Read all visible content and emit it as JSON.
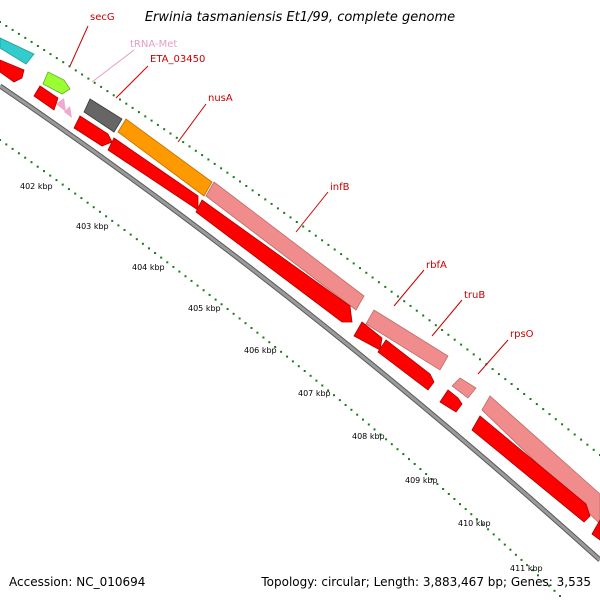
{
  "title": "Erwinia tasmaniensis Et1/99, complete genome",
  "footer": {
    "accession": "Accession: NC_010694",
    "topology": "Topology: circular; Length: 3,883,467 bp; Genes: 3,535"
  },
  "colors": {
    "backbone": "#8c8c8c",
    "cds": "#ff0000",
    "gene": "#f08c8c",
    "trna": "#f0a8d0",
    "tick": "#1a7a1a",
    "label_red": "#cc0000",
    "label_pink": "#e89ac6"
  },
  "scale": [
    {
      "text": "402 kbp"
    },
    {
      "text": "403 kbp"
    },
    {
      "text": "404 kbp"
    },
    {
      "text": "405 kbp"
    },
    {
      "text": "406 kbp"
    },
    {
      "text": "407 kbp"
    },
    {
      "text": "408 kbp"
    },
    {
      "text": "409 kbp"
    },
    {
      "text": "410 kbp"
    },
    {
      "text": "411 kbp"
    }
  ],
  "labels": [
    {
      "text": "secG",
      "color": "#cc0000"
    },
    {
      "text": "tRNA-Met",
      "color": "#e89ac6"
    },
    {
      "text": "ETA_03450",
      "color": "#cc0000"
    },
    {
      "text": "nusA",
      "color": "#cc0000"
    },
    {
      "text": "infB",
      "color": "#cc0000"
    },
    {
      "text": "rbfA",
      "color": "#cc0000"
    },
    {
      "text": "truB",
      "color": "#cc0000"
    },
    {
      "text": "rpsO",
      "color": "#cc0000"
    }
  ]
}
